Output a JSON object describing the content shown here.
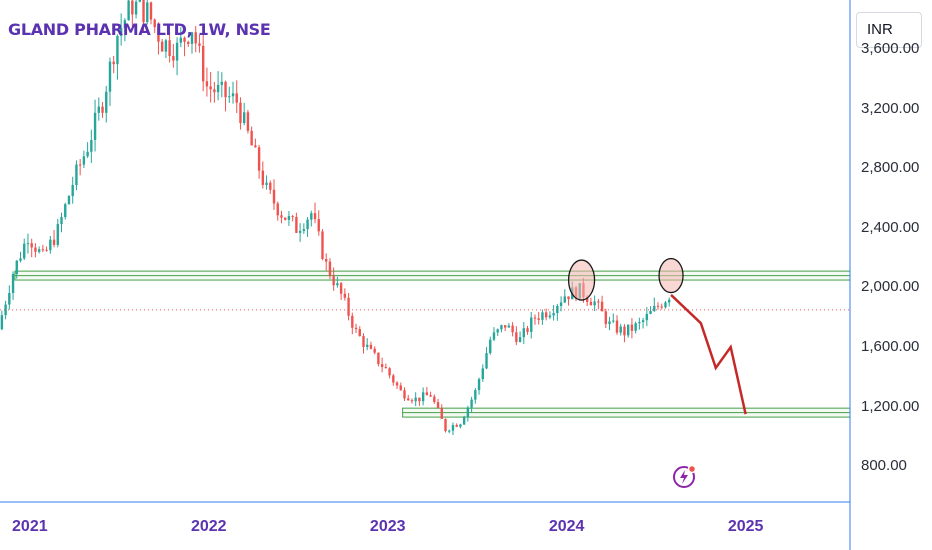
{
  "chart": {
    "title": "GLAND PHARMA LTD, 1W, NSE",
    "currency": "INR",
    "colors": {
      "up": "#26a69a",
      "down": "#ef5350",
      "zone": "#43a047",
      "projection": "#c62828",
      "marker": "#1a1a1a",
      "marker_fill": "#f4b6b0",
      "accent": "#5b33b0",
      "axis_line": "#2f7cf6",
      "hline": "#ef5350"
    },
    "icons": [
      "lightning-icon"
    ]
  },
  "chart_data": {
    "type": "candlestick",
    "title": "GLAND PHARMA LTD, 1W, NSE",
    "price_axis": {
      "ticks": [
        "3,600.00",
        "3,200.00",
        "2,800.00",
        "2,400.00",
        "2,000.00",
        "1,600.00",
        "1,200.00",
        "800.00"
      ],
      "range": [
        560,
        3930
      ]
    },
    "time_axis": {
      "ticks": [
        "2021",
        "2022",
        "2023",
        "2024",
        "2025"
      ],
      "range": [
        "2020-11",
        "2025-08"
      ]
    },
    "support_resistance_zones": [
      {
        "from": "2020-12",
        "to": "2025-08",
        "low": 2050,
        "high": 2110
      },
      {
        "from": "2023-02",
        "to": "2025-08",
        "low": 1130,
        "high": 1190
      }
    ],
    "current_price_line": 1850,
    "marked_highs": [
      {
        "date": "2024-02",
        "price": 2050
      },
      {
        "date": "2024-08",
        "price": 2080
      }
    ],
    "projection_path": [
      {
        "date": "2024-08",
        "price": 1950
      },
      {
        "date": "2024-10",
        "price": 1760
      },
      {
        "date": "2024-11",
        "price": 1460
      },
      {
        "date": "2024-12",
        "price": 1600
      },
      {
        "date": "2025-01",
        "price": 1150
      }
    ],
    "price_path_monthly": [
      [
        "2020-11",
        1720
      ],
      [
        "2020-12",
        2100
      ],
      [
        "2021-01",
        2350
      ],
      [
        "2021-02",
        2200
      ],
      [
        "2021-03",
        2380
      ],
      [
        "2021-04",
        2700
      ],
      [
        "2021-05",
        2950
      ],
      [
        "2021-06",
        3250
      ],
      [
        "2021-07",
        3700
      ],
      [
        "2021-08",
        3900
      ],
      [
        "2021-09",
        3850
      ],
      [
        "2021-10",
        3650
      ],
      [
        "2021-11",
        3600
      ],
      [
        "2021-12",
        3750
      ],
      [
        "2022-01",
        3350
      ],
      [
        "2022-02",
        3300
      ],
      [
        "2022-03",
        3250
      ],
      [
        "2022-04",
        2950
      ],
      [
        "2022-05",
        2650
      ],
      [
        "2022-06",
        2500
      ],
      [
        "2022-07",
        2400
      ],
      [
        "2022-08",
        2500
      ],
      [
        "2022-09",
        2150
      ],
      [
        "2022-10",
        1950
      ],
      [
        "2022-11",
        1700
      ],
      [
        "2022-12",
        1560
      ],
      [
        "2023-01",
        1450
      ],
      [
        "2023-02",
        1300
      ],
      [
        "2023-03",
        1250
      ],
      [
        "2023-04",
        1280
      ],
      [
        "2023-05",
        1050
      ],
      [
        "2023-06",
        1100
      ],
      [
        "2023-07",
        1300
      ],
      [
        "2023-08",
        1650
      ],
      [
        "2023-09",
        1750
      ],
      [
        "2023-10",
        1650
      ],
      [
        "2023-11",
        1800
      ],
      [
        "2023-12",
        1850
      ],
      [
        "2024-01",
        1950
      ],
      [
        "2024-02",
        1980
      ],
      [
        "2024-03",
        1900
      ],
      [
        "2024-04",
        1750
      ],
      [
        "2024-05",
        1700
      ],
      [
        "2024-06",
        1750
      ],
      [
        "2024-07",
        1850
      ],
      [
        "2024-08",
        1950
      ]
    ]
  }
}
